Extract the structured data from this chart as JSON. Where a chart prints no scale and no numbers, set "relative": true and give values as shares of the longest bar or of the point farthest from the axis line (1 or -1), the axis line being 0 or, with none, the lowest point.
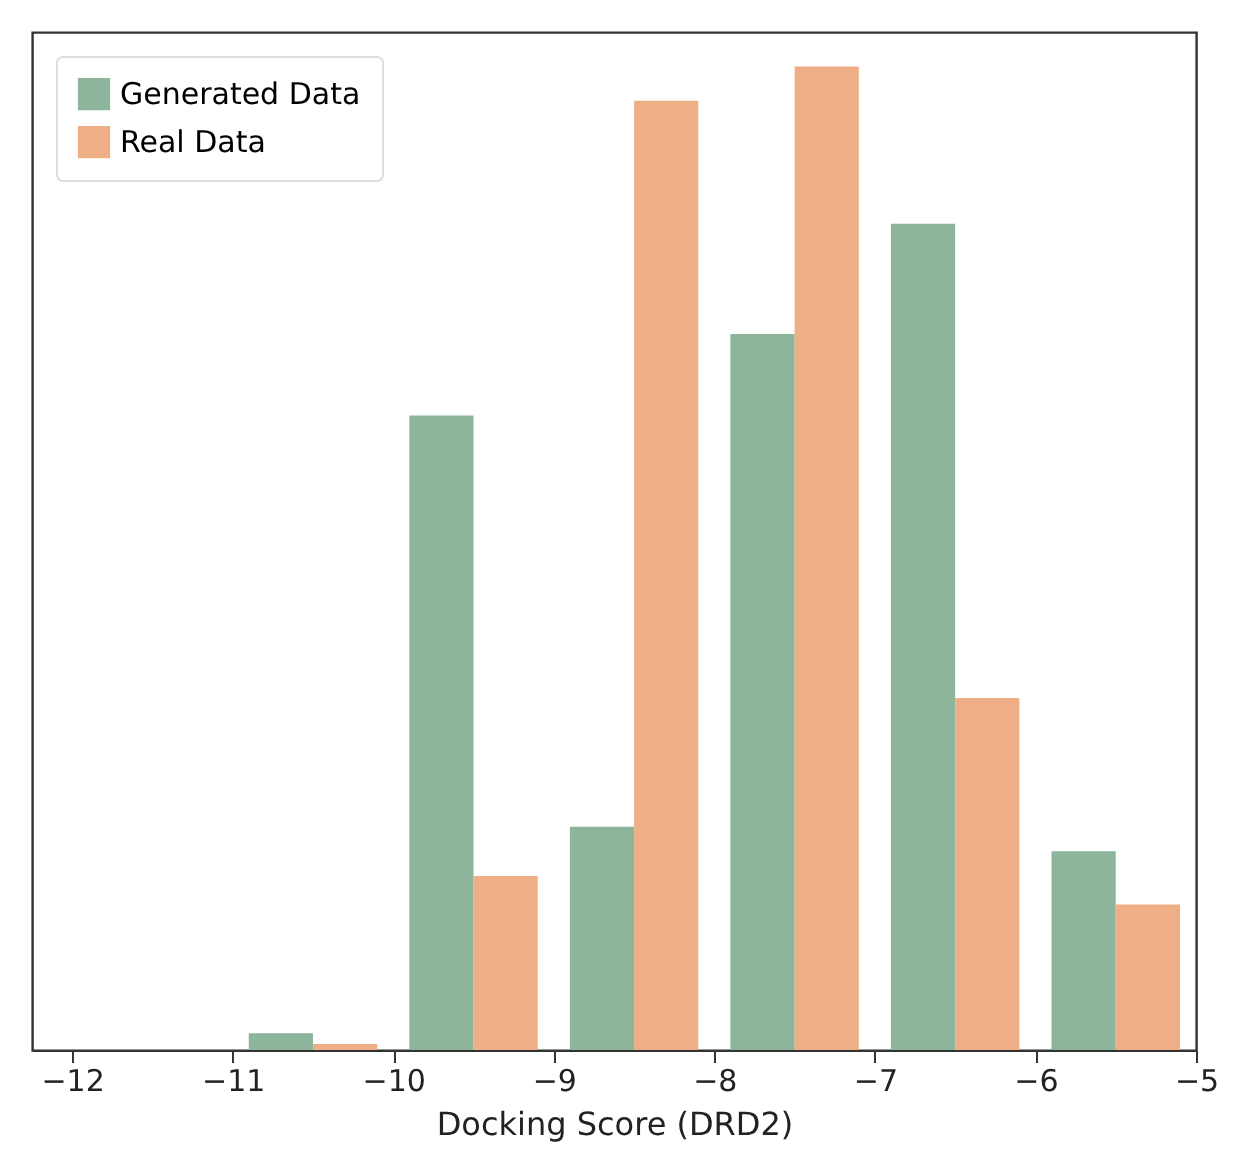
{
  "chart_data": {
    "type": "bar",
    "xlabel": "Docking Score (DRD2)",
    "relative": true,
    "xlim": [
      -12.25,
      -5
    ],
    "xticks": [
      -12,
      -11,
      -10,
      -9,
      -8,
      -7,
      -6,
      -5
    ],
    "legend": "top left",
    "grid": false,
    "series": [
      {
        "name": "Generated Data",
        "color": "#8db59c",
        "x": [
          -10.7,
          -9.7,
          -8.7,
          -7.7,
          -6.7,
          -5.7
        ],
        "values": [
          0.017,
          0.645,
          0.227,
          0.728,
          0.84,
          0.202
        ]
      },
      {
        "name": "Real Data",
        "color": "#eeae86",
        "x": [
          -10.3,
          -9.3,
          -8.3,
          -7.3,
          -6.3,
          -5.3
        ],
        "values": [
          0.006,
          0.177,
          0.965,
          1,
          0.358,
          0.148
        ]
      }
    ]
  }
}
